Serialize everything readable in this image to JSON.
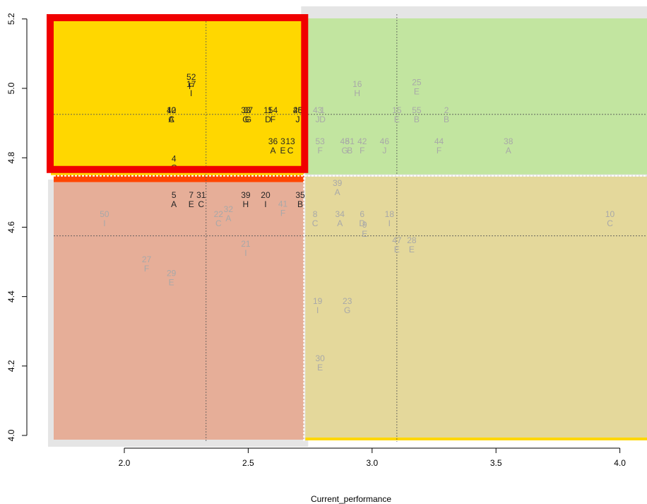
{
  "chart_data": {
    "type": "scatter",
    "title": "",
    "xlabel": "Current_performance",
    "ylabel": "",
    "xlim": [
      1.72,
      4.12
    ],
    "ylim": [
      3.98,
      5.2
    ],
    "x_ticks": [
      2.0,
      2.5,
      3.0,
      3.5,
      4.0
    ],
    "x_tick_labels": [
      "2.0",
      "2.5",
      "3.0",
      "3.5",
      "4.0"
    ],
    "y_ticks": [
      4.0,
      4.2,
      4.4,
      4.6,
      4.8,
      5.0,
      5.2
    ],
    "y_tick_labels": [
      "4.0",
      "4.2",
      "4.4",
      "4.6",
      "4.8",
      "5.0",
      "5.2"
    ],
    "reference_lines": {
      "left_cluster_x": 2.33,
      "right_cluster_x": 3.1,
      "top_cluster_y": 4.925,
      "bottom_cluster_y": 4.575,
      "x_split": 2.725,
      "y_split": 4.75
    },
    "colors": {
      "top_left": "#ffd700",
      "top_right": "#c2e5a0",
      "bottom_left": "#e6ae98",
      "bottom_right": "#e4d89b",
      "highlight_border": "#f00000",
      "orange_band": "#ff4500",
      "frame": "#e5e5e5",
      "dim_text": "#a8a8a8",
      "dark_text": "#262626"
    },
    "points": [
      {
        "id": "52",
        "group": "F",
        "x": 2.27,
        "y": 5.02,
        "emph": true
      },
      {
        "id": "17",
        "group": "I",
        "x": 2.27,
        "y": 5.0,
        "emph": true
      },
      {
        "id": "12",
        "group": "C",
        "x": 2.19,
        "y": 4.925,
        "emph": true
      },
      {
        "id": "40",
        "group": "A",
        "x": 2.19,
        "y": 4.925,
        "emph": true
      },
      {
        "id": "33",
        "group": "G",
        "x": 2.49,
        "y": 4.925,
        "emph": true
      },
      {
        "id": "37",
        "group": "G",
        "x": 2.5,
        "y": 4.925,
        "emph": true
      },
      {
        "id": "11",
        "group": "D",
        "x": 2.58,
        "y": 4.925,
        "emph": true
      },
      {
        "id": "54",
        "group": "F",
        "x": 2.6,
        "y": 4.925,
        "emph": true
      },
      {
        "id": "26",
        "group": "J",
        "x": 2.7,
        "y": 4.925,
        "emph": true
      },
      {
        "id": "45",
        "group": "J",
        "x": 2.7,
        "y": 4.925,
        "emph": true
      },
      {
        "id": "36",
        "group": "A",
        "x": 2.6,
        "y": 4.835,
        "emph": true
      },
      {
        "id": "3",
        "group": "E",
        "x": 2.64,
        "y": 4.835,
        "emph": true
      },
      {
        "id": "13",
        "group": "C",
        "x": 2.67,
        "y": 4.835,
        "emph": true
      },
      {
        "id": "4",
        "group": "C",
        "x": 2.2,
        "y": 4.785,
        "emph": true
      },
      {
        "id": "5",
        "group": "A",
        "x": 2.2,
        "y": 4.68,
        "emph": true
      },
      {
        "id": "7",
        "group": "E",
        "x": 2.27,
        "y": 4.68,
        "emph": true
      },
      {
        "id": "31",
        "group": "C",
        "x": 2.31,
        "y": 4.68,
        "emph": true
      },
      {
        "id": "39",
        "group": "H",
        "x": 2.49,
        "y": 4.68,
        "emph": true
      },
      {
        "id": "20",
        "group": "I",
        "x": 2.57,
        "y": 4.68,
        "emph": true
      },
      {
        "id": "35",
        "group": "B",
        "x": 2.71,
        "y": 4.68,
        "emph": true
      },
      {
        "id": "41",
        "group": "F",
        "x": 2.64,
        "y": 4.655,
        "emph": false
      },
      {
        "id": "32",
        "group": "A",
        "x": 2.42,
        "y": 4.64,
        "emph": false
      },
      {
        "id": "50",
        "group": "I",
        "x": 1.92,
        "y": 4.625,
        "emph": false
      },
      {
        "id": "22",
        "group": "C",
        "x": 2.38,
        "y": 4.625,
        "emph": false
      },
      {
        "id": "21",
        "group": "I",
        "x": 2.49,
        "y": 4.54,
        "emph": false
      },
      {
        "id": "27",
        "group": "F",
        "x": 2.09,
        "y": 4.495,
        "emph": false
      },
      {
        "id": "29",
        "group": "E",
        "x": 2.19,
        "y": 4.455,
        "emph": false
      },
      {
        "id": "16",
        "group": "H",
        "x": 2.94,
        "y": 5.0,
        "emph": false
      },
      {
        "id": "25",
        "group": "E",
        "x": 3.18,
        "y": 5.005,
        "emph": false
      },
      {
        "id": "43",
        "group": "J",
        "x": 2.78,
        "y": 4.925,
        "emph": false
      },
      {
        "id": "1",
        "group": "D",
        "x": 2.8,
        "y": 4.925,
        "emph": false
      },
      {
        "id": "15",
        "group": "E",
        "x": 3.1,
        "y": 4.925,
        "emph": false
      },
      {
        "id": "55",
        "group": "B",
        "x": 3.18,
        "y": 4.925,
        "emph": false
      },
      {
        "id": "2",
        "group": "B",
        "x": 3.3,
        "y": 4.925,
        "emph": false
      },
      {
        "id": "53",
        "group": "F",
        "x": 2.79,
        "y": 4.835,
        "emph": false
      },
      {
        "id": "48",
        "group": "G",
        "x": 2.89,
        "y": 4.835,
        "emph": false
      },
      {
        "id": "51",
        "group": "B",
        "x": 2.91,
        "y": 4.835,
        "emph": false
      },
      {
        "id": "42",
        "group": "F",
        "x": 2.96,
        "y": 4.835,
        "emph": false
      },
      {
        "id": "46",
        "group": "J",
        "x": 3.05,
        "y": 4.835,
        "emph": false
      },
      {
        "id": "44",
        "group": "F",
        "x": 3.27,
        "y": 4.835,
        "emph": false
      },
      {
        "id": "38",
        "group": "A",
        "x": 3.55,
        "y": 4.835,
        "emph": false
      },
      {
        "id": "39",
        "group": "A",
        "x": 2.86,
        "y": 4.715,
        "emph": false
      },
      {
        "id": "8",
        "group": "C",
        "x": 2.77,
        "y": 4.625,
        "emph": false
      },
      {
        "id": "34",
        "group": "A",
        "x": 2.87,
        "y": 4.625,
        "emph": false
      },
      {
        "id": "6",
        "group": "D",
        "x": 2.96,
        "y": 4.625,
        "emph": false
      },
      {
        "id": "18",
        "group": "I",
        "x": 3.07,
        "y": 4.625,
        "emph": false
      },
      {
        "id": "10",
        "group": "C",
        "x": 3.96,
        "y": 4.625,
        "emph": false
      },
      {
        "id": "9",
        "group": "E",
        "x": 2.97,
        "y": 4.595,
        "emph": false
      },
      {
        "id": "47",
        "group": "E",
        "x": 3.1,
        "y": 4.55,
        "emph": false
      },
      {
        "id": "28",
        "group": "E",
        "x": 3.16,
        "y": 4.55,
        "emph": false
      },
      {
        "id": "19",
        "group": "I",
        "x": 2.78,
        "y": 4.375,
        "emph": false
      },
      {
        "id": "23",
        "group": "G",
        "x": 2.9,
        "y": 4.375,
        "emph": false
      },
      {
        "id": "30",
        "group": "E",
        "x": 2.79,
        "y": 4.21,
        "emph": false
      }
    ]
  }
}
